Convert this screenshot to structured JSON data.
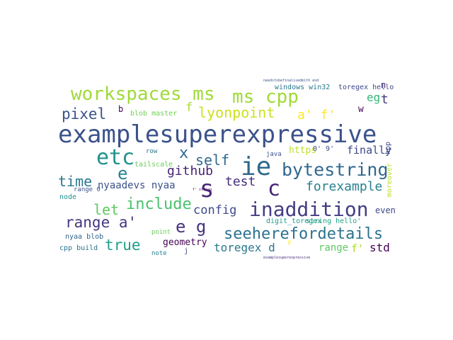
{
  "word_cloud": {
    "words": [
      {
        "text": "examplesuperexpressive",
        "color": "#3b528b"
      },
      {
        "text": "workspaces ms",
        "color": "#a0da39"
      },
      {
        "text": "ms cpp",
        "color": "#a0da39"
      },
      {
        "text": "ie",
        "color": "#30698e"
      },
      {
        "text": "bytestring",
        "color": "#31688e"
      },
      {
        "text": "inaddition",
        "color": "#433e85"
      },
      {
        "text": "etc",
        "color": "#20928c"
      },
      {
        "text": "s",
        "color": "#472878"
      },
      {
        "text": "c",
        "color": "#482475"
      },
      {
        "text": "seeherefordetails",
        "color": "#2c728e"
      },
      {
        "text": "include",
        "color": "#4ac16d"
      },
      {
        "text": "lyonpoint",
        "color": "#cde11d"
      },
      {
        "text": "pixel",
        "color": "#3b528b"
      },
      {
        "text": "range a'",
        "color": "#453781"
      },
      {
        "text": "let",
        "color": "#5ec962"
      },
      {
        "text": "true",
        "color": "#1f9e89"
      },
      {
        "text": "time",
        "color": "#2a788e"
      },
      {
        "text": "forexample",
        "color": "#27808e"
      },
      {
        "text": "e g",
        "color": "#46337e"
      },
      {
        "text": "self",
        "color": "#31688e"
      },
      {
        "text": "e",
        "color": "#26828e"
      },
      {
        "text": "x",
        "color": "#31688e"
      },
      {
        "text": "test",
        "color": "#472d7b"
      },
      {
        "text": "github",
        "color": "#482475"
      },
      {
        "text": "config",
        "color": "#3e4989"
      },
      {
        "text": "toregex d",
        "color": "#2a788e"
      },
      {
        "text": "std",
        "color": "#440154"
      },
      {
        "text": "a' f'",
        "color": "#fde725"
      },
      {
        "text": "eg",
        "color": "#35b779"
      },
      {
        "text": "t",
        "color": "#453781"
      },
      {
        "text": "f'",
        "color": "#addc30"
      },
      {
        "text": "f",
        "color": "#addc30"
      },
      {
        "text": "finally",
        "color": "#3e4989"
      },
      {
        "text": "nyaadevs nyaa",
        "color": "#3b528b"
      },
      {
        "text": "https",
        "color": "#bddf26"
      },
      {
        "text": "geometry",
        "color": "#440154"
      },
      {
        "text": "range",
        "color": "#5ec962"
      },
      {
        "text": "event",
        "color": "#3e4989"
      },
      {
        "text": "w",
        "color": "#440154"
      },
      {
        "text": "n",
        "color": "#481668"
      },
      {
        "text": "b",
        "color": "#440154"
      },
      {
        "text": "toregex hello",
        "color": "#3e4989"
      },
      {
        "text": "windows win32",
        "color": "#2a788e"
      },
      {
        "text": "blob master",
        "color": "#73d056"
      },
      {
        "text": "node",
        "color": "#21918c"
      },
      {
        "text": "cpp build",
        "color": "#2c728e"
      },
      {
        "text": "nyaa blob",
        "color": "#32648e"
      },
      {
        "text": "tailscale",
        "color": "#6ccd5a"
      },
      {
        "text": "note",
        "color": "#26828e"
      },
      {
        "text": "point",
        "color": "#6ccd5a"
      },
      {
        "text": "digit_toregex",
        "color": "#1e9b8a"
      },
      {
        "text": "string hello'",
        "color": "#20a386"
      },
      {
        "text": "java",
        "color": "#3b528b"
      },
      {
        "text": "moreover",
        "color": "#bddf26"
      },
      {
        "text": "hpp",
        "color": "#3e4989"
      },
      {
        "text": "0' 9'",
        "color": "#3e4989"
      },
      {
        "text": "row",
        "color": "#2c728e"
      },
      {
        "text": "range 0'",
        "color": "#3b528b"
      },
      {
        "text": "j",
        "color": "#3e4989"
      },
      {
        "text": "y",
        "color": "#fde725"
      },
      {
        "text": "needstobefinalisedmith end",
        "color": "#3b528b"
      },
      {
        "text": "examplesuperexpressive",
        "color": "#472d7b"
      },
      {
        "text": "f' string",
        "color": "#440154"
      }
    ]
  }
}
